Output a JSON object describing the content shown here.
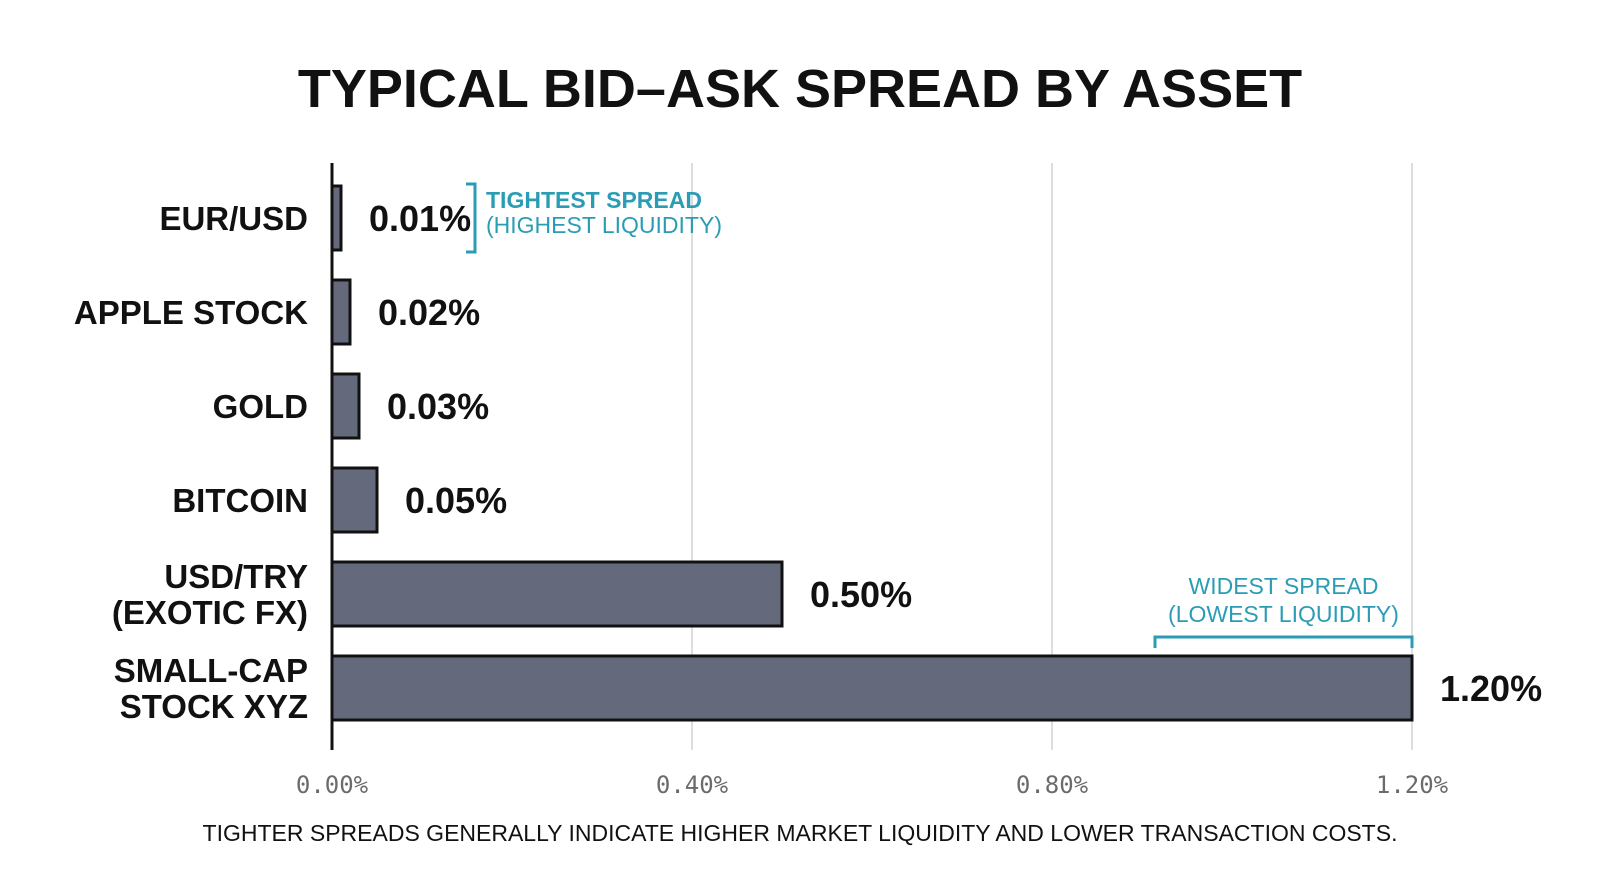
{
  "chart_data": {
    "type": "bar",
    "orientation": "horizontal",
    "title": "TYPICAL BID–ASK SPREAD BY ASSET",
    "categories": [
      [
        "EUR/USD"
      ],
      [
        "APPLE STOCK"
      ],
      [
        "GOLD"
      ],
      [
        "BITCOIN"
      ],
      [
        "USD/TRY",
        "(EXOTIC FX)"
      ],
      [
        "SMALL-CAP",
        "STOCK XYZ"
      ]
    ],
    "values": [
      0.01,
      0.02,
      0.03,
      0.05,
      0.5,
      1.2
    ],
    "value_labels": [
      "0.01%",
      "0.02%",
      "0.03%",
      "0.05%",
      "0.50%",
      "1.20%"
    ],
    "xlim": [
      0,
      1.2
    ],
    "x_ticks": [
      0,
      0.4,
      0.8,
      1.2
    ],
    "x_tick_labels": [
      "0.00%",
      "0.40%",
      "0.80%",
      "1.20%"
    ],
    "grid": "vertical",
    "annotations": [
      {
        "target": 0,
        "lines": [
          "TIGHTEST SPREAD",
          "(HIGHEST LIQUIDITY)"
        ]
      },
      {
        "target": 5,
        "lines": [
          "WIDEST SPREAD",
          "(LOWEST LIQUIDITY)"
        ]
      }
    ],
    "footnote": "TIGHTER SPREADS GENERALLY INDICATE HIGHER MARKET LIQUIDITY AND LOWER TRANSACTION COSTS.",
    "colors": {
      "bar": "#646a7b",
      "bar_stroke": "#111111",
      "accent": "#2a9db5",
      "grid": "#dddddd",
      "axis": "#111111"
    }
  }
}
